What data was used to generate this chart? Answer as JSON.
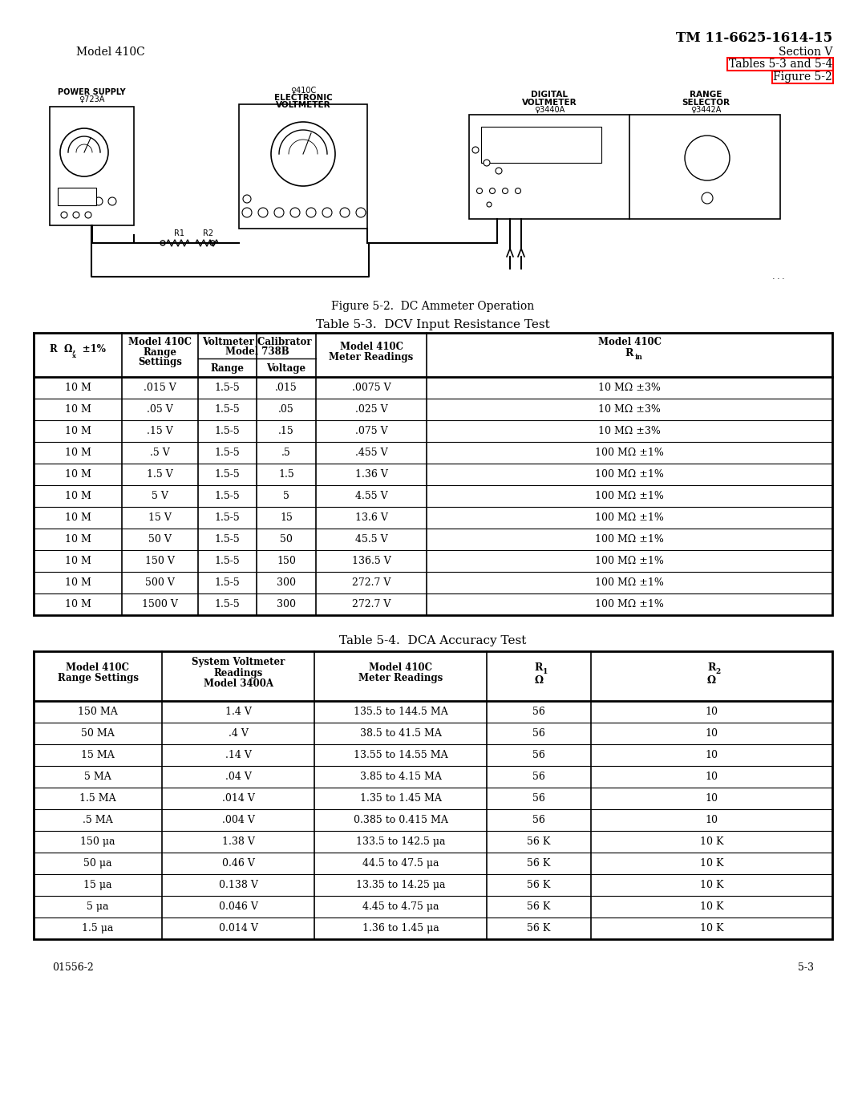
{
  "page_title": "TM 11-6625-1614-15",
  "section": "Section V",
  "tables_ref": "Tables 5-3 and 5-4",
  "figure_ref": "Figure 5-2",
  "header_left": "Model 410C",
  "figure_caption": "Figure 5-2.  DC Ammeter Operation",
  "table3_title": "Table 5-3.  DCV Input Resistance Test",
  "table3_rows": [
    [
      "10 M",
      ".015 V",
      "1.5-5",
      ".015",
      ".0075 V",
      "10 MΩ ±3%"
    ],
    [
      "10 M",
      ".05 V",
      "1.5-5",
      ".05",
      ".025 V",
      "10 MΩ ±3%"
    ],
    [
      "10 M",
      ".15 V",
      "1.5-5",
      ".15",
      ".075 V",
      "10 MΩ ±3%"
    ],
    [
      "10 M",
      ".5 V",
      "1.5-5",
      ".5",
      ".455 V",
      "100 MΩ ±1%"
    ],
    [
      "10 M",
      "1.5 V",
      "1.5-5",
      "1.5",
      "1.36 V",
      "100 MΩ ±1%"
    ],
    [
      "10 M",
      "5 V",
      "1.5-5",
      "5",
      "4.55 V",
      "100 MΩ ±1%"
    ],
    [
      "10 M",
      "15 V",
      "1.5-5",
      "15",
      "13.6 V",
      "100 MΩ ±1%"
    ],
    [
      "10 M",
      "50 V",
      "1.5-5",
      "50",
      "45.5 V",
      "100 MΩ ±1%"
    ],
    [
      "10 M",
      "150 V",
      "1.5-5",
      "150",
      "136.5 V",
      "100 MΩ ±1%"
    ],
    [
      "10 M",
      "500 V",
      "1.5-5",
      "300",
      "272.7 V",
      "100 MΩ ±1%"
    ],
    [
      "10 M",
      "1500 V",
      "1.5-5",
      "300",
      "272.7 V",
      "100 MΩ ±1%"
    ]
  ],
  "table4_title": "Table 5-4.  DCA Accuracy Test",
  "table4_rows": [
    [
      "150 MA",
      "1.4 V",
      "135.5 to 144.5 MA",
      "56",
      "10"
    ],
    [
      "50 MA",
      ".4 V",
      "38.5 to 41.5 MA",
      "56",
      "10"
    ],
    [
      "15 MA",
      ".14 V",
      "13.55 to 14.55 MA",
      "56",
      "10"
    ],
    [
      "5 MA",
      ".04 V",
      "3.85 to 4.15 MA",
      "56",
      "10"
    ],
    [
      "1.5 MA",
      ".014 V",
      "1.35 to 1.45 MA",
      "56",
      "10"
    ],
    [
      ".5 MA",
      ".004 V",
      "0.385 to 0.415 MA",
      "56",
      "10"
    ],
    [
      "150 μa",
      "1.38 V",
      "133.5 to 142.5 μa",
      "56 K",
      "10 K"
    ],
    [
      "50 μa",
      "0.46 V",
      "44.5 to 47.5 μa",
      "56 K",
      "10 K"
    ],
    [
      "15 μa",
      "0.138 V",
      "13.35 to 14.25 μa",
      "56 K",
      "10 K"
    ],
    [
      "5 μa",
      "0.046 V",
      "4.45 to 4.75 μa",
      "56 K",
      "10 K"
    ],
    [
      "1.5 μa",
      "0.014 V",
      "1.36 to 1.45 μa",
      "56 K",
      "10 K"
    ]
  ],
  "footer_left": "01556-2",
  "footer_right": "5-3",
  "bg_color": "#ffffff"
}
